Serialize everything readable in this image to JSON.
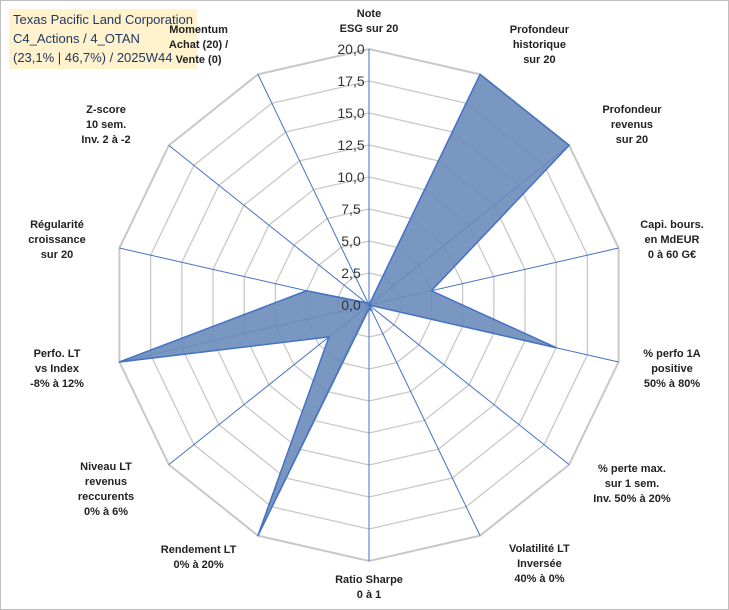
{
  "title_box": {
    "line1": "Texas Pacific Land Corporation",
    "line2": "C4_Actions / 4_OTAN",
    "line3": "(23,1% | 46,7%) / 2025W44",
    "background": "#fff2cc",
    "text_color": "#1f3864"
  },
  "chart_data": {
    "type": "radar",
    "rmin": 0,
    "rmax": 20,
    "tick_step": 2.5,
    "tick_labels": [
      "0,0",
      "2,5",
      "5,0",
      "7,5",
      "10,0",
      "12,5",
      "15,0",
      "17,5",
      "20,0"
    ],
    "grid": true,
    "legend": "none",
    "axes": [
      "Note\nESG sur 20",
      "Profondeur\nhistorique\nsur 20",
      "Profondeur\nrevenus\nsur 20",
      "Capi. bours.\nen MdEUR\n0 à 60 G€",
      "% perfo 1A\npositive\n50% à 80%",
      "% perte max.\nsur 1 sem.\nInv. 50% à 20%",
      "Volatilité LT\nInversée\n40% à 0%",
      "Ratio Sharpe\n0 à 1",
      "Rendement LT\n0% à 20%",
      "Niveau LT\nrevenus\nreccurents\n0% à 6%",
      "Perfo. LT\nvs Index\n-8% à 12%",
      "Régularité\ncroissance\nsur 20",
      "Z-score\n10 sem.\nInv. 2 à -2",
      "Momentum\nAchat (20) /\nVente (0)"
    ],
    "series": [
      {
        "values": [
          0,
          20,
          20,
          5,
          15,
          0,
          0.5,
          0.3,
          20,
          4,
          20,
          5,
          0.3,
          0
        ],
        "fill": "#6b8cba",
        "stroke": "#4472c4"
      }
    ],
    "colors": {
      "grid": "#c8c8c8",
      "spokes": "#4472c4"
    }
  }
}
